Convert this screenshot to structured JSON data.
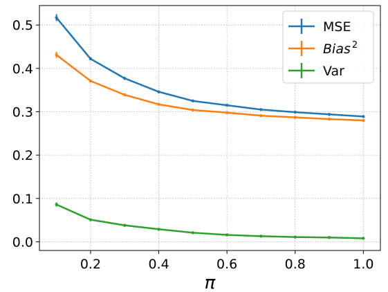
{
  "chart_data": {
    "type": "line",
    "xlabel": "π",
    "ylabel": "",
    "x": [
      0.1,
      0.2,
      0.3,
      0.4,
      0.5,
      0.6,
      0.7,
      0.8,
      0.9,
      1.0
    ],
    "xlim": [
      0.05,
      1.05
    ],
    "ylim": [
      -0.02,
      0.545
    ],
    "xticks": [
      "0.2",
      "0.4",
      "0.6",
      "0.8",
      "1.0"
    ],
    "yticks": [
      "0.0",
      "0.1",
      "0.2",
      "0.3",
      "0.4",
      "0.5"
    ],
    "grid": true,
    "legend_position": "top-right",
    "series": [
      {
        "name": "MSE",
        "color": "#1f77b4",
        "values": [
          0.517,
          0.422,
          0.377,
          0.346,
          0.325,
          0.315,
          0.305,
          0.299,
          0.294,
          0.289
        ],
        "errors": [
          0.008,
          0.003,
          0.002,
          0.002,
          0.002,
          0.002,
          0.002,
          0.002,
          0.002,
          0.002
        ]
      },
      {
        "name": "Bias",
        "name_sup": "2",
        "color": "#ff7f0e",
        "values": [
          0.431,
          0.371,
          0.339,
          0.317,
          0.304,
          0.298,
          0.291,
          0.287,
          0.283,
          0.28
        ],
        "errors": [
          0.007,
          0.002,
          0.002,
          0.002,
          0.002,
          0.002,
          0.002,
          0.002,
          0.002,
          0.002
        ]
      },
      {
        "name": "Var",
        "color": "#2ca02c",
        "values": [
          0.086,
          0.051,
          0.038,
          0.029,
          0.021,
          0.016,
          0.013,
          0.011,
          0.01,
          0.008
        ],
        "errors": [
          0.005,
          0.002,
          0.001,
          0.001,
          0.001,
          0.001,
          0.001,
          0.001,
          0.001,
          0.001
        ]
      }
    ]
  }
}
